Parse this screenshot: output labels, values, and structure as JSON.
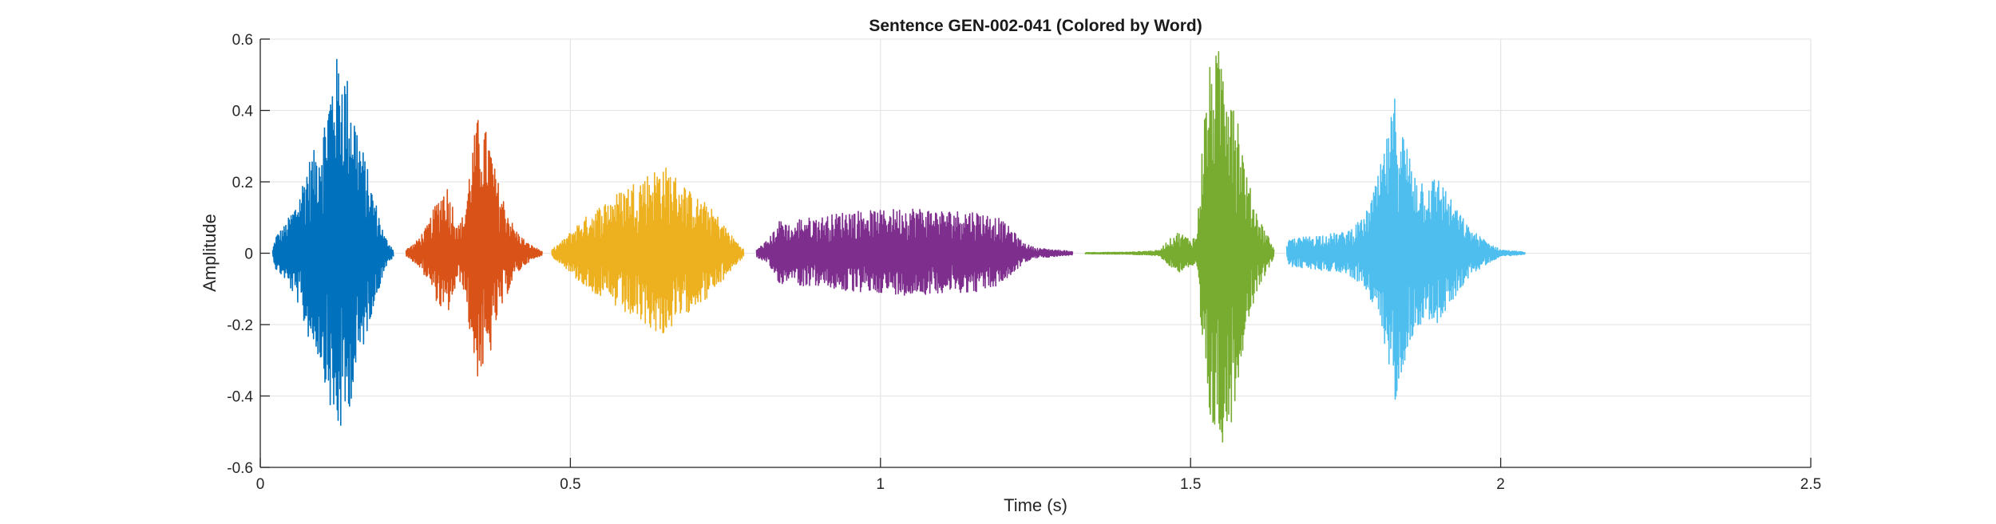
{
  "chart_data": {
    "type": "line",
    "title": "Sentence GEN-002-041 (Colored by Word)",
    "xlabel": "Time (s)",
    "ylabel": "Amplitude",
    "xlim": [
      0,
      2.5
    ],
    "ylim": [
      -0.6,
      0.6
    ],
    "x_ticks": [
      0,
      0.5,
      1,
      1.5,
      2,
      2.5
    ],
    "x_tick_labels": [
      "0",
      "0.5",
      "1",
      "1.5",
      "2",
      "2.5"
    ],
    "y_ticks": [
      0.6,
      0.4,
      0.2,
      0,
      -0.2,
      -0.4,
      -0.6
    ],
    "y_tick_labels": [
      "0.6",
      "0.4",
      "0.2",
      "0",
      "-0.2",
      "-0.4",
      "-0.6"
    ],
    "grid": true,
    "box": "top-right",
    "segments": [
      {
        "color": "#0072BD",
        "t_start": 0.02,
        "t_end": 0.215,
        "envelope": [
          [
            0.02,
            0.01
          ],
          [
            0.025,
            0.05
          ],
          [
            0.04,
            0.08
          ],
          [
            0.06,
            0.15
          ],
          [
            0.075,
            0.25
          ],
          [
            0.09,
            0.3
          ],
          [
            0.1,
            0.35
          ],
          [
            0.11,
            0.45
          ],
          [
            0.12,
            0.55
          ],
          [
            0.13,
            0.55
          ],
          [
            0.14,
            0.5
          ],
          [
            0.15,
            0.42
          ],
          [
            0.16,
            0.33
          ],
          [
            0.17,
            0.26
          ],
          [
            0.18,
            0.18
          ],
          [
            0.19,
            0.12
          ],
          [
            0.2,
            0.05
          ],
          [
            0.215,
            0.01
          ]
        ]
      },
      {
        "color": "#D95319",
        "t_start": 0.235,
        "t_end": 0.455,
        "envelope": [
          [
            0.235,
            0.01
          ],
          [
            0.25,
            0.03
          ],
          [
            0.27,
            0.08
          ],
          [
            0.285,
            0.15
          ],
          [
            0.3,
            0.2
          ],
          [
            0.31,
            0.14
          ],
          [
            0.32,
            0.08
          ],
          [
            0.33,
            0.12
          ],
          [
            0.34,
            0.28
          ],
          [
            0.35,
            0.38
          ],
          [
            0.36,
            0.36
          ],
          [
            0.37,
            0.32
          ],
          [
            0.38,
            0.22
          ],
          [
            0.395,
            0.14
          ],
          [
            0.41,
            0.07
          ],
          [
            0.43,
            0.03
          ],
          [
            0.455,
            0.005
          ]
        ]
      },
      {
        "color": "#EDB120",
        "t_start": 0.47,
        "t_end": 0.78,
        "envelope": [
          [
            0.47,
            0.01
          ],
          [
            0.49,
            0.04
          ],
          [
            0.51,
            0.08
          ],
          [
            0.53,
            0.11
          ],
          [
            0.56,
            0.15
          ],
          [
            0.6,
            0.2
          ],
          [
            0.63,
            0.23
          ],
          [
            0.65,
            0.25
          ],
          [
            0.68,
            0.2
          ],
          [
            0.7,
            0.16
          ],
          [
            0.72,
            0.14
          ],
          [
            0.74,
            0.1
          ],
          [
            0.76,
            0.05
          ],
          [
            0.78,
            0.01
          ]
        ]
      },
      {
        "color": "#7E2F8E",
        "t_start": 0.8,
        "t_end": 1.31,
        "envelope": [
          [
            0.8,
            0.01
          ],
          [
            0.82,
            0.04
          ],
          [
            0.84,
            0.1
          ],
          [
            0.86,
            0.07
          ],
          [
            0.87,
            0.1
          ],
          [
            0.9,
            0.1
          ],
          [
            0.95,
            0.12
          ],
          [
            1.0,
            0.12
          ],
          [
            1.05,
            0.13
          ],
          [
            1.1,
            0.12
          ],
          [
            1.15,
            0.12
          ],
          [
            1.19,
            0.1
          ],
          [
            1.21,
            0.07
          ],
          [
            1.23,
            0.03
          ],
          [
            1.25,
            0.015
          ],
          [
            1.31,
            0.005
          ]
        ]
      },
      {
        "color": "#77AC30",
        "t_start": 1.33,
        "t_end": 1.635,
        "envelope": [
          [
            1.33,
            0.002
          ],
          [
            1.4,
            0.003
          ],
          [
            1.45,
            0.008
          ],
          [
            1.46,
            0.03
          ],
          [
            1.48,
            0.06
          ],
          [
            1.5,
            0.04
          ],
          [
            1.51,
            0.05
          ],
          [
            1.52,
            0.35
          ],
          [
            1.53,
            0.52
          ],
          [
            1.54,
            0.56
          ],
          [
            1.55,
            0.58
          ],
          [
            1.56,
            0.56
          ],
          [
            1.57,
            0.48
          ],
          [
            1.58,
            0.35
          ],
          [
            1.59,
            0.22
          ],
          [
            1.61,
            0.1
          ],
          [
            1.625,
            0.05
          ],
          [
            1.635,
            0.01
          ]
        ]
      },
      {
        "color": "#4DBEEE",
        "t_start": 1.655,
        "t_end": 2.04,
        "envelope": [
          [
            1.655,
            0.02
          ],
          [
            1.66,
            0.04
          ],
          [
            1.7,
            0.05
          ],
          [
            1.75,
            0.06
          ],
          [
            1.78,
            0.1
          ],
          [
            1.8,
            0.2
          ],
          [
            1.82,
            0.35
          ],
          [
            1.83,
            0.45
          ],
          [
            1.84,
            0.36
          ],
          [
            1.86,
            0.24
          ],
          [
            1.88,
            0.2
          ],
          [
            1.9,
            0.22
          ],
          [
            1.92,
            0.15
          ],
          [
            1.95,
            0.07
          ],
          [
            1.98,
            0.03
          ],
          [
            2.0,
            0.01
          ],
          [
            2.04,
            0.003
          ]
        ]
      }
    ]
  }
}
